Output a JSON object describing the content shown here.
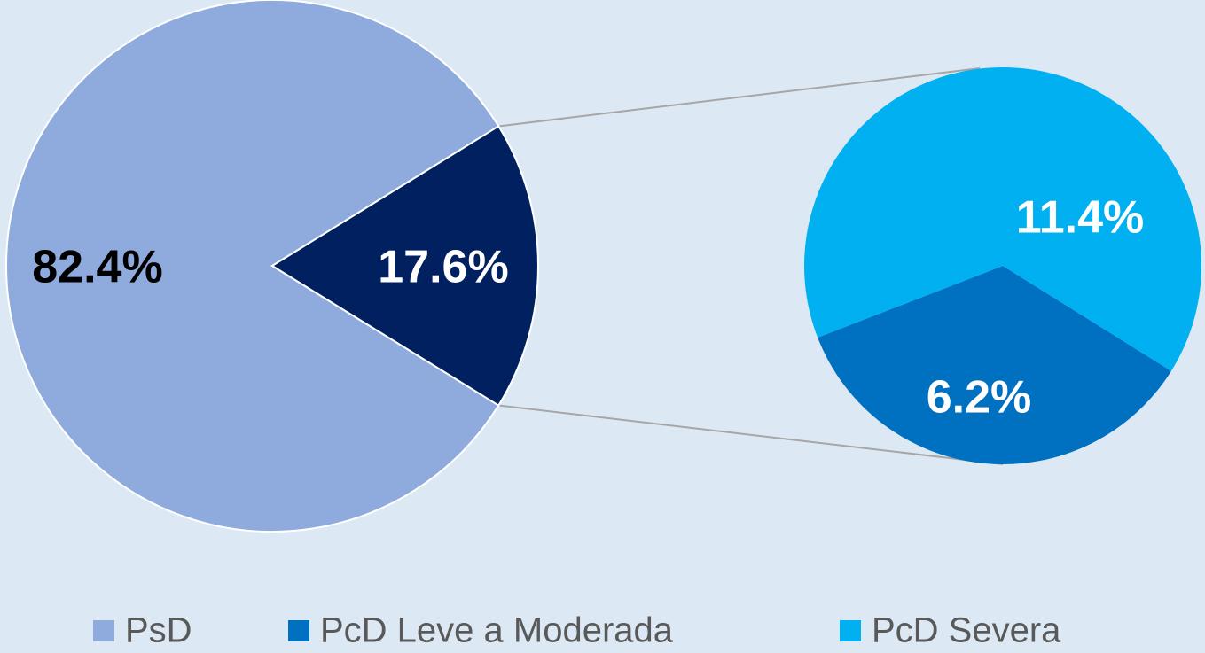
{
  "chart_data": {
    "type": "pie",
    "categories": [
      "PsD",
      "PcD Leve a Moderada",
      "PcD Severa"
    ],
    "values": [
      82.4,
      6.2,
      11.4
    ],
    "value_labels": [
      "82.4%",
      "6.2%",
      "11.4%"
    ],
    "colors": [
      "#8faadc",
      "#0070c0",
      "#00b0f0"
    ],
    "other_value": 17.6,
    "other_value_label": "17.6%",
    "other_color": "#002060"
  }
}
